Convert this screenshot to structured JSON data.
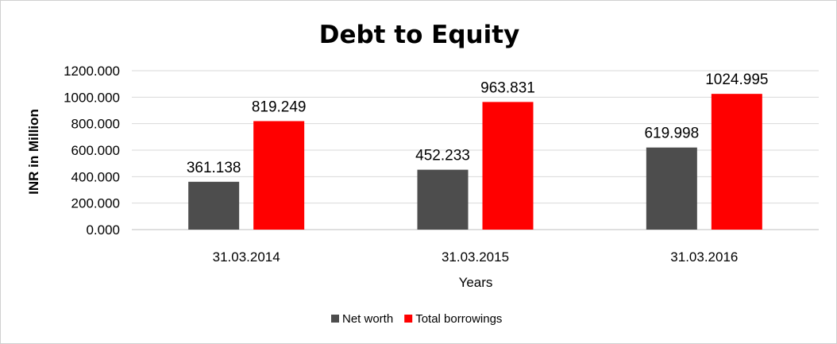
{
  "chart_data": {
    "type": "bar",
    "title": "Debt to Equity",
    "xlabel": "Years",
    "ylabel": "INR in Million",
    "categories": [
      "31.03.2014",
      "31.03.2015",
      "31.03.2016"
    ],
    "series": [
      {
        "name": "Net worth",
        "values": [
          361.138,
          452.233,
          619.998
        ],
        "labels": [
          "361.138",
          "452.233",
          "619.998"
        ],
        "color": "#4d4d4d"
      },
      {
        "name": "Total borrowings",
        "values": [
          819.249,
          963.831,
          1024.995
        ],
        "labels": [
          "819.249",
          "963.831",
          "1024.995"
        ],
        "color": "#ff0000"
      }
    ],
    "ylim": [
      0,
      1200
    ],
    "yticks": [
      0,
      200,
      400,
      600,
      800,
      1000,
      1200
    ],
    "ytick_labels": [
      "0.000",
      "200.000",
      "400.000",
      "600.000",
      "800.000",
      "1000.000",
      "1200.000"
    ],
    "grid": true,
    "legend_position": "bottom"
  }
}
